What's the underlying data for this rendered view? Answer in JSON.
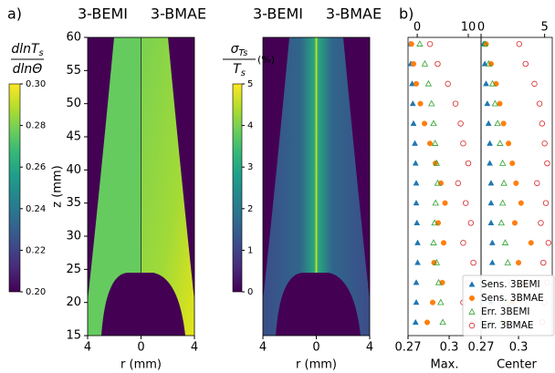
{
  "panel_labels": {
    "a": "a)",
    "b": "b)"
  },
  "chart_data": [
    {
      "type": "heatmap",
      "titles": [
        "3-BEMI",
        "3-BMAE"
      ],
      "xlabel": "r (mm)",
      "ylabel": "z (mm)",
      "xlim": [
        -4,
        4
      ],
      "xticks": [
        {
          "value": -4,
          "label": "4"
        },
        0,
        4
      ],
      "ylim": [
        15,
        60
      ],
      "yticks": [
        15,
        20,
        25,
        30,
        35,
        40,
        45,
        50,
        55,
        60
      ],
      "colormap": "viridis",
      "clim": [
        0.2,
        0.3
      ],
      "cticks": [
        {
          "value": 0.2,
          "label": "0.20"
        },
        0.22,
        0.24,
        0.26,
        0.28,
        {
          "value": 0.3,
          "label": "0.30"
        }
      ],
      "colorbar_label": {
        "numerator": "dlnT",
        "numerator_sub": "s",
        "denominator": "dlnΘ"
      }
    },
    {
      "type": "heatmap",
      "titles": [
        "3-BEMI",
        "3-BMAE"
      ],
      "xlabel": "r (mm)",
      "xlim": [
        -4,
        4
      ],
      "xticks": [
        {
          "value": -4,
          "label": "4"
        },
        0,
        4
      ],
      "ylim": [
        15,
        60
      ],
      "colormap": "viridis",
      "clim": [
        0,
        5
      ],
      "cticks": [
        0,
        1,
        2,
        3,
        4,
        5
      ],
      "colorbar_label": {
        "numerator": "σ",
        "numerator_sub": "Ts",
        "denominator": "T",
        "denominator_sub": "s",
        "unit": "(%)"
      }
    },
    {
      "type": "scatter",
      "xlabel": "Max.",
      "xlim": [
        0.27,
        0.3233
      ],
      "xticks": [
        0.27,
        0.3
      ],
      "x2lim": [
        -1.8,
        12.5
      ],
      "x2ticks": [
        0,
        10
      ],
      "ylim": [
        15,
        60
      ],
      "y": [
        59,
        56,
        53,
        50,
        47,
        44,
        41,
        38,
        35,
        32,
        29,
        26,
        23,
        20,
        17
      ],
      "series": [
        {
          "name": "Sens. 3BEMI",
          "color": "#1f77b4",
          "marker": "triangle",
          "filled": true,
          "x": [
            0.2715,
            0.272,
            0.273,
            0.2735,
            0.274,
            0.275,
            0.2755,
            0.276,
            0.276,
            0.2765,
            0.277,
            0.277,
            0.276,
            0.276,
            0.2755
          ]
        },
        {
          "name": "Sens. 3BMAE",
          "color": "#ff7f0e",
          "marker": "circle",
          "filled": true,
          "x": [
            0.2725,
            0.274,
            0.276,
            0.279,
            0.282,
            0.286,
            0.29,
            0.294,
            0.297,
            0.292,
            0.296,
            0.289,
            0.295,
            0.288,
            0.284
          ]
        },
        {
          "name": "Err. 3BEMI",
          "color": "#2ca02c",
          "marker": "triangle",
          "filled": false,
          "axis": "x2",
          "x": [
            0.5,
            1.5,
            2.2,
            2.8,
            3.2,
            3.5,
            3.8,
            4.0,
            3.6,
            3.4,
            3.2,
            3.8,
            4.2,
            4.6,
            5.0
          ]
        },
        {
          "name": "Err. 3BMAE",
          "color": "#d62728",
          "marker": "circle",
          "filled": false,
          "axis": "x2",
          "x": [
            2.5,
            4,
            6,
            7.5,
            8.5,
            9,
            10,
            8,
            9.5,
            10.5,
            9,
            11,
            10,
            9,
            11
          ]
        }
      ]
    },
    {
      "type": "scatter",
      "xlabel": "Center",
      "xlim": [
        0.27,
        0.327
      ],
      "xticks": [
        0.27,
        0.3
      ],
      "x2lim": [
        0,
        5.6
      ],
      "x2ticks": [
        0,
        5
      ],
      "ylim": [
        15,
        60
      ],
      "legend": "lower right",
      "y": [
        59,
        56,
        53,
        50,
        47,
        44,
        41,
        38,
        35,
        32,
        29,
        26,
        23,
        20,
        17
      ],
      "series": [
        {
          "name": "Sens. 3BEMI",
          "color": "#1f77b4",
          "marker": "triangle",
          "filled": true,
          "x": [
            0.272,
            0.273,
            0.274,
            0.275,
            0.276,
            0.277,
            0.277,
            0.278,
            0.278,
            0.278,
            0.279,
            0.279,
            0.278,
            0.278,
            0.278
          ]
        },
        {
          "name": "Sens. 3BMAE",
          "color": "#ff7f0e",
          "marker": "circle",
          "filled": true,
          "x": [
            0.274,
            0.278,
            0.282,
            0.285,
            0.288,
            0.292,
            0.295,
            0.298,
            0.302,
            0.297,
            0.31,
            0.3,
            0.305,
            0.295,
            0.29
          ]
        },
        {
          "name": "Err. 3BEMI",
          "color": "#2ca02c",
          "marker": "triangle",
          "filled": false,
          "axis": "x2",
          "x": [
            0.3,
            0.6,
            0.9,
            1.1,
            1.3,
            1.5,
            1.7,
            1.8,
            1.7,
            1.6,
            1.9,
            2.1,
            2.3,
            2.0,
            1.6
          ]
        },
        {
          "name": "Err. 3BMAE",
          "color": "#d62728",
          "marker": "circle",
          "filled": false,
          "axis": "x2",
          "x": [
            3.0,
            3.5,
            4.2,
            4.6,
            4.8,
            5.0,
            5.2,
            4.4,
            5.1,
            4.7,
            5.3,
            4.9,
            5.2,
            5.0,
            4.8
          ]
        }
      ]
    }
  ]
}
